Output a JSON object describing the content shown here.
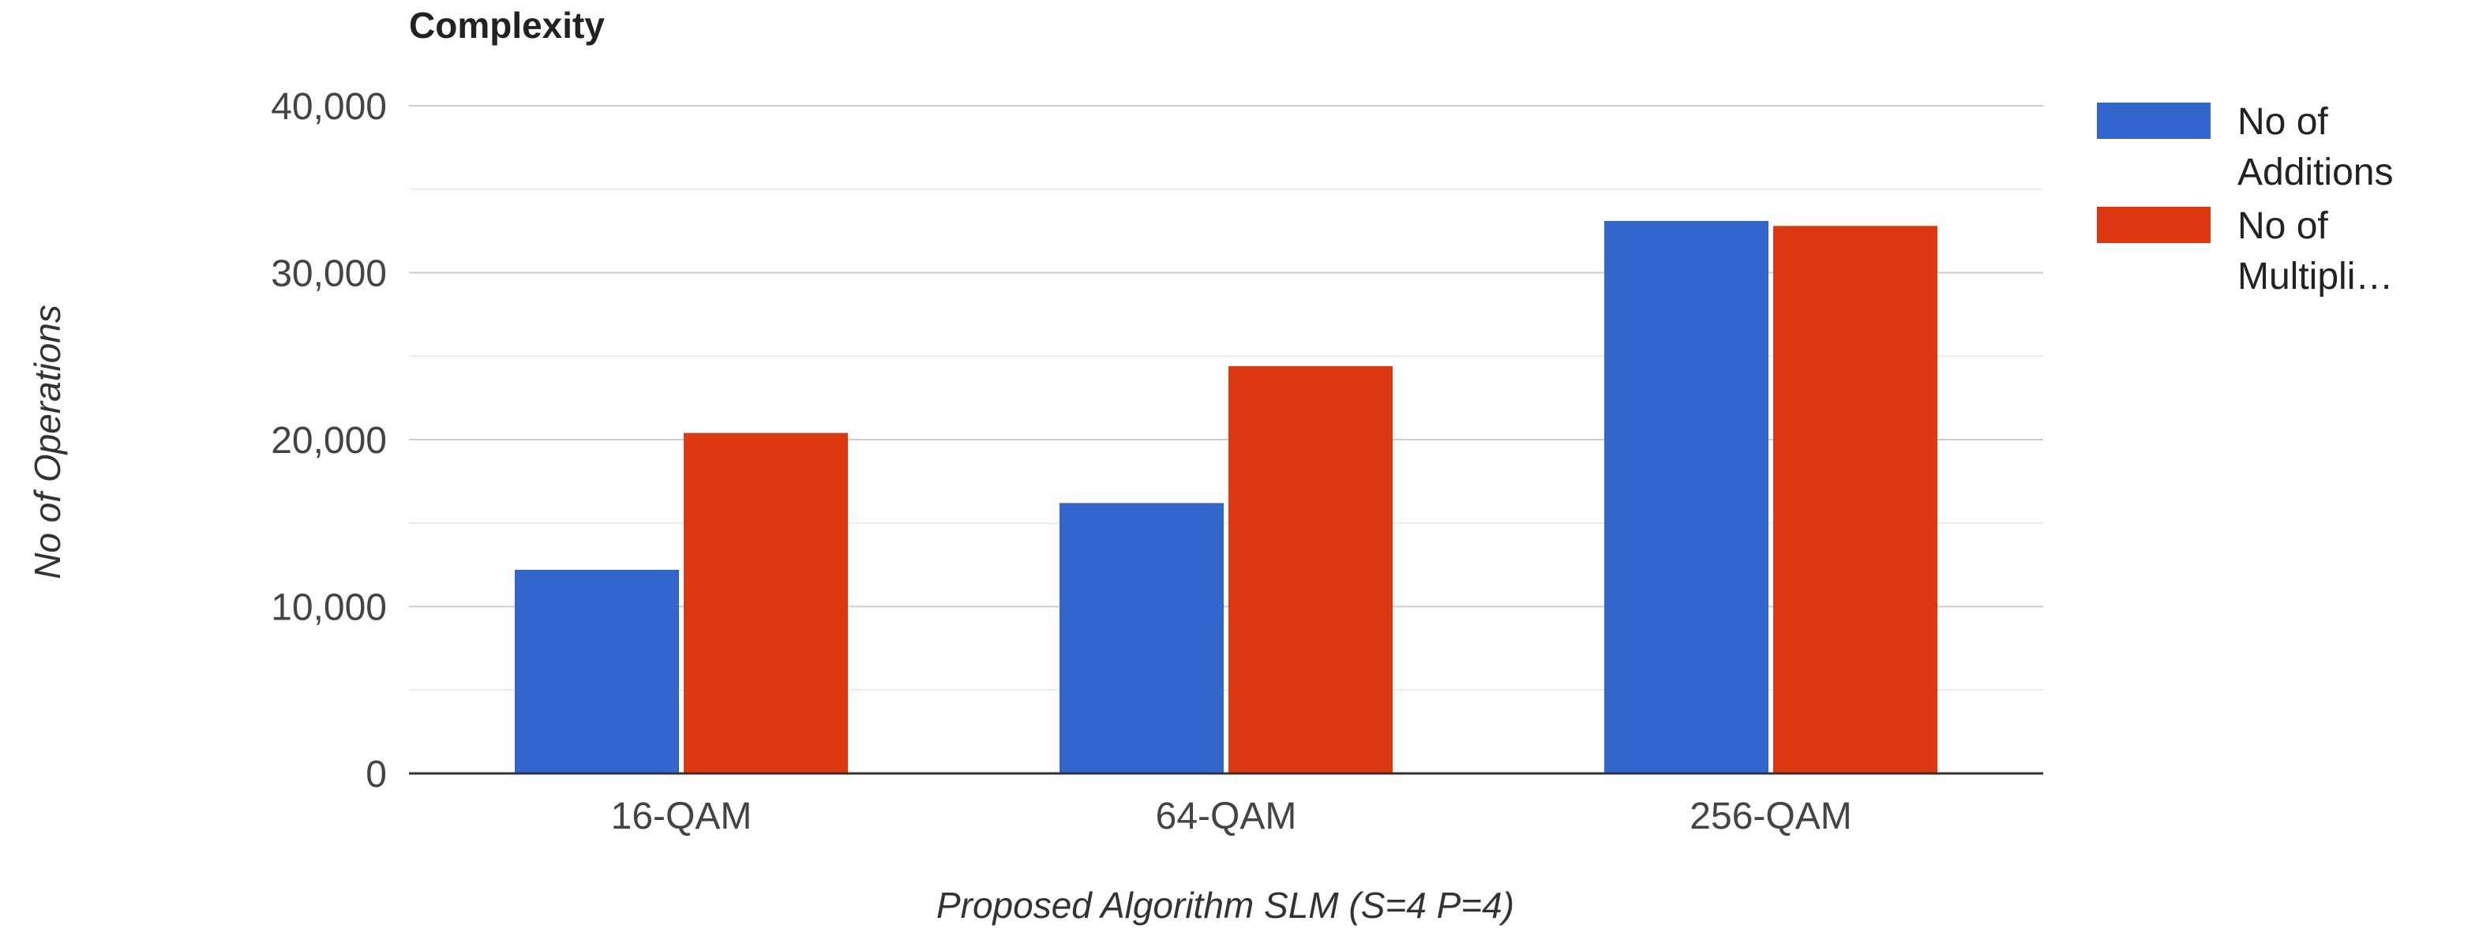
{
  "chart_data": {
    "type": "bar",
    "title": "Complexity",
    "xlabel": "Proposed Algorithm SLM (S=4 P=4)",
    "ylabel": "No of Operations",
    "categories": [
      "16-QAM",
      "64-QAM",
      "256-QAM"
    ],
    "series": [
      {
        "name": "No of Additions",
        "legend_lines": [
          "No of",
          "Additions"
        ],
        "color": "#3366cc",
        "values": [
          12200,
          16200,
          33100
        ]
      },
      {
        "name": "No of Multipli…",
        "legend_lines": [
          "No of",
          "Multipli…"
        ],
        "color": "#dc3912",
        "values": [
          20400,
          24400,
          32800
        ]
      }
    ],
    "ylim": [
      0,
      40000
    ],
    "y_ticks": [
      0,
      10000,
      20000,
      30000,
      40000
    ],
    "y_tick_labels": [
      "0",
      "10,000",
      "20,000",
      "30,000",
      "40,000"
    ],
    "grid": true,
    "legend_position": "right"
  }
}
